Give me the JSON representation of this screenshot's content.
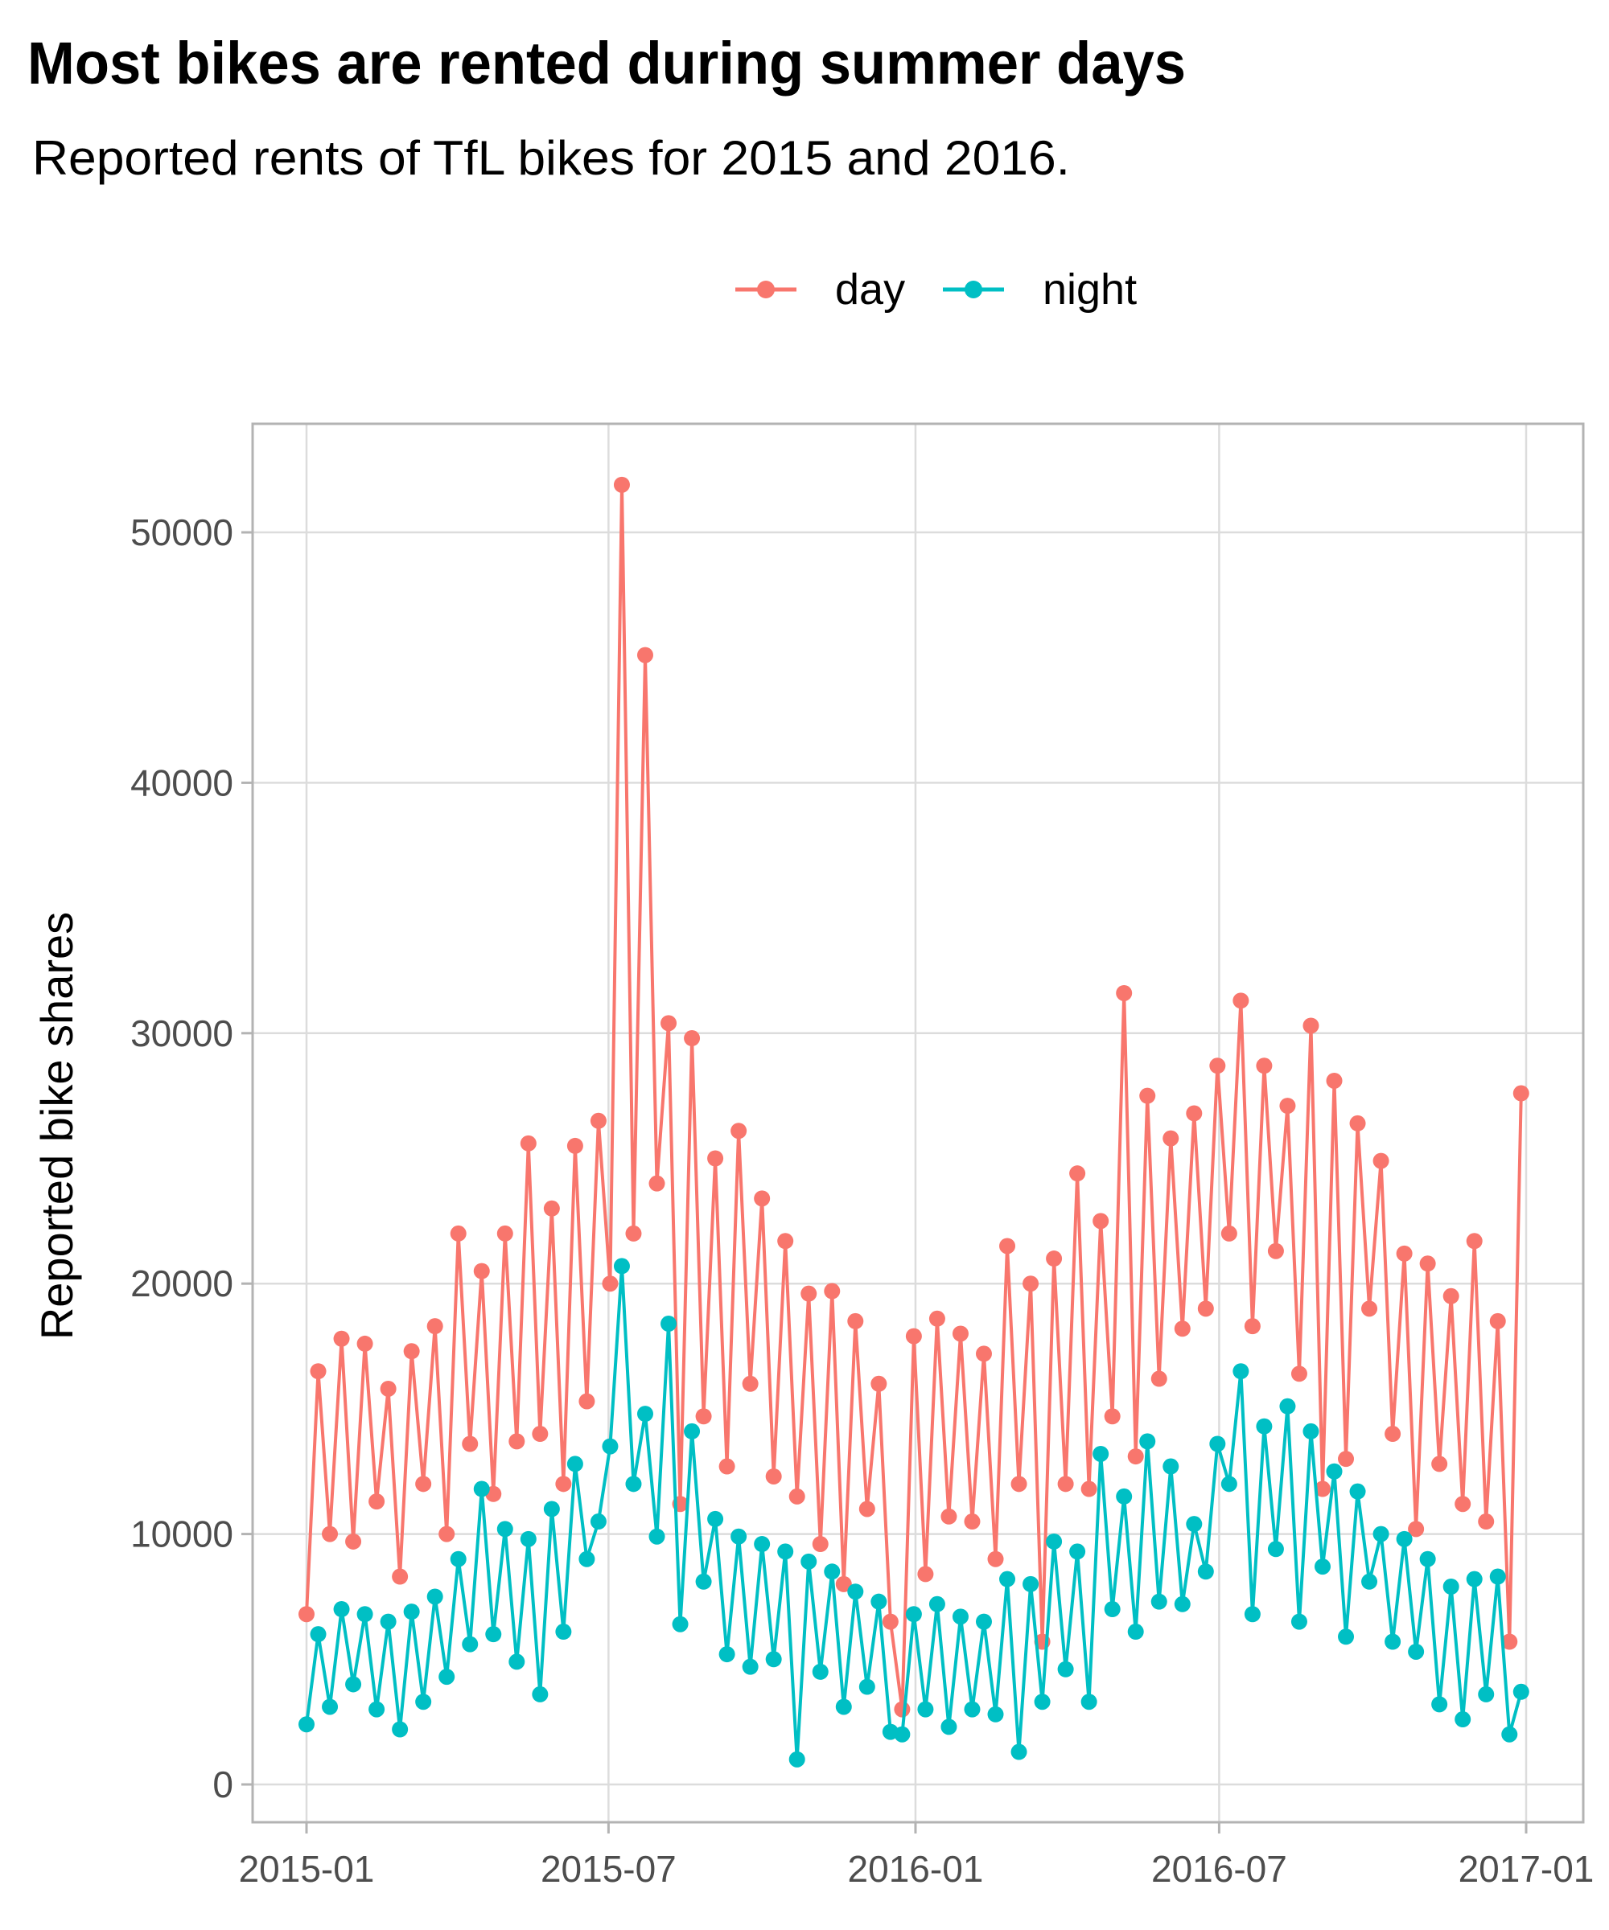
{
  "chart_data": {
    "type": "line",
    "title": "Most bikes are rented during summer days",
    "subtitle": "Reported rents of TfL bikes for 2015 and 2016.",
    "xlabel": "",
    "ylabel": "Reported bike shares",
    "ylim": [
      -3000,
      54500
    ],
    "yticks": [
      0,
      10000,
      20000,
      30000,
      40000,
      50000
    ],
    "ytick_labels": [
      "0",
      "10000",
      "20000",
      "30000",
      "40000",
      "50000"
    ],
    "xticks": [
      "2015-01",
      "2015-07",
      "2016-01",
      "2016-07",
      "2017-01"
    ],
    "x_start": "2015-01-01",
    "x_step_days": 7,
    "grid": true,
    "legend_position": "top",
    "series": [
      {
        "name": "day",
        "color": "#F8766D",
        "values": [
          6800,
          16500,
          10000,
          17800,
          9700,
          17600,
          11300,
          15800,
          8300,
          17300,
          12000,
          18300,
          10000,
          22000,
          13600,
          20500,
          11600,
          22000,
          13700,
          25600,
          14000,
          23000,
          12000,
          25500,
          15300,
          26500,
          20000,
          51900,
          22000,
          45100,
          24000,
          30400,
          11200,
          29800,
          14700,
          25000,
          12700,
          26100,
          16000,
          23400,
          12300,
          21700,
          11500,
          19600,
          9600,
          19700,
          8000,
          18500,
          11000,
          16000,
          6500,
          3000,
          17900,
          8400,
          18600,
          10700,
          18000,
          10500,
          17200,
          9000,
          21500,
          12000,
          20000,
          5700,
          21000,
          12000,
          24400,
          11800,
          22500,
          14700,
          31600,
          13100,
          27500,
          16200,
          25800,
          18200,
          26800,
          19000,
          28700,
          22000,
          31300,
          18300,
          28700,
          21300,
          27100,
          16400,
          30300,
          11800,
          28100,
          13000,
          26400,
          19000,
          24900,
          14000,
          21200,
          10200,
          20800,
          12800,
          19500,
          11200,
          21700,
          10500,
          18500,
          5700,
          27600
        ]
      },
      {
        "name": "night",
        "color": "#00BFC4",
        "values": [
          2400,
          6000,
          3100,
          7000,
          4000,
          6800,
          3000,
          6500,
          2200,
          6900,
          3300,
          7500,
          4300,
          9000,
          5600,
          11800,
          6000,
          10200,
          4900,
          9800,
          3600,
          11000,
          6100,
          12800,
          9000,
          10500,
          13500,
          20700,
          12000,
          14800,
          9900,
          18400,
          6400,
          14100,
          8100,
          10600,
          5200,
          9900,
          4700,
          9600,
          5000,
          9300,
          1000,
          8900,
          4500,
          8500,
          3100,
          7700,
          3900,
          7300,
          2100,
          2000,
          6800,
          3000,
          7200,
          2300,
          6700,
          3000,
          6500,
          2800,
          8200,
          1300,
          8000,
          3300,
          9700,
          4600,
          9300,
          3300,
          13200,
          7000,
          11500,
          6100,
          13700,
          7300,
          12700,
          7200,
          10400,
          8500,
          13600,
          12000,
          16500,
          6800,
          14300,
          9400,
          15100,
          6500,
          14100,
          8700,
          12500,
          5900,
          11700,
          8100,
          10000,
          5700,
          9800,
          5300,
          9000,
          3200,
          7900,
          2600,
          8200,
          3600,
          8300,
          2000,
          3700
        ]
      }
    ]
  }
}
